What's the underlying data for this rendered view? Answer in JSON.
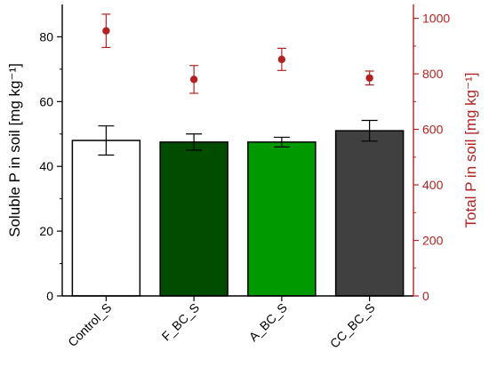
{
  "chart_data": {
    "type": "bar",
    "categories": [
      "Control_S",
      "F_BC_S",
      "A_BC_S",
      "CC_BC_S"
    ],
    "bar_colors": [
      "#ffffff",
      "#004d00",
      "#009a00",
      "#404040"
    ],
    "series": [
      {
        "name": "Soluble P",
        "axis": "left",
        "values": [
          48.0,
          47.5,
          47.5,
          51.0
        ],
        "errors": [
          4.5,
          2.5,
          1.5,
          3.2
        ],
        "color": "#000000"
      },
      {
        "name": "Total P",
        "axis": "right",
        "type": "scatter",
        "values": [
          955,
          780,
          852,
          785
        ],
        "errors": [
          60,
          50,
          40,
          25
        ],
        "color": "#b22222"
      }
    ],
    "ylabel": "Soluble P in soil [mg kg⁻¹]",
    "y2label": "Total P in soil [mg kg⁻¹]",
    "ylim": [
      0,
      90
    ],
    "y2lim": [
      0,
      1050
    ],
    "yticks": [
      0,
      20,
      40,
      60,
      80
    ],
    "y2ticks": [
      0,
      200,
      400,
      600,
      800,
      1000
    ],
    "right_axis_color": "#b22222"
  }
}
